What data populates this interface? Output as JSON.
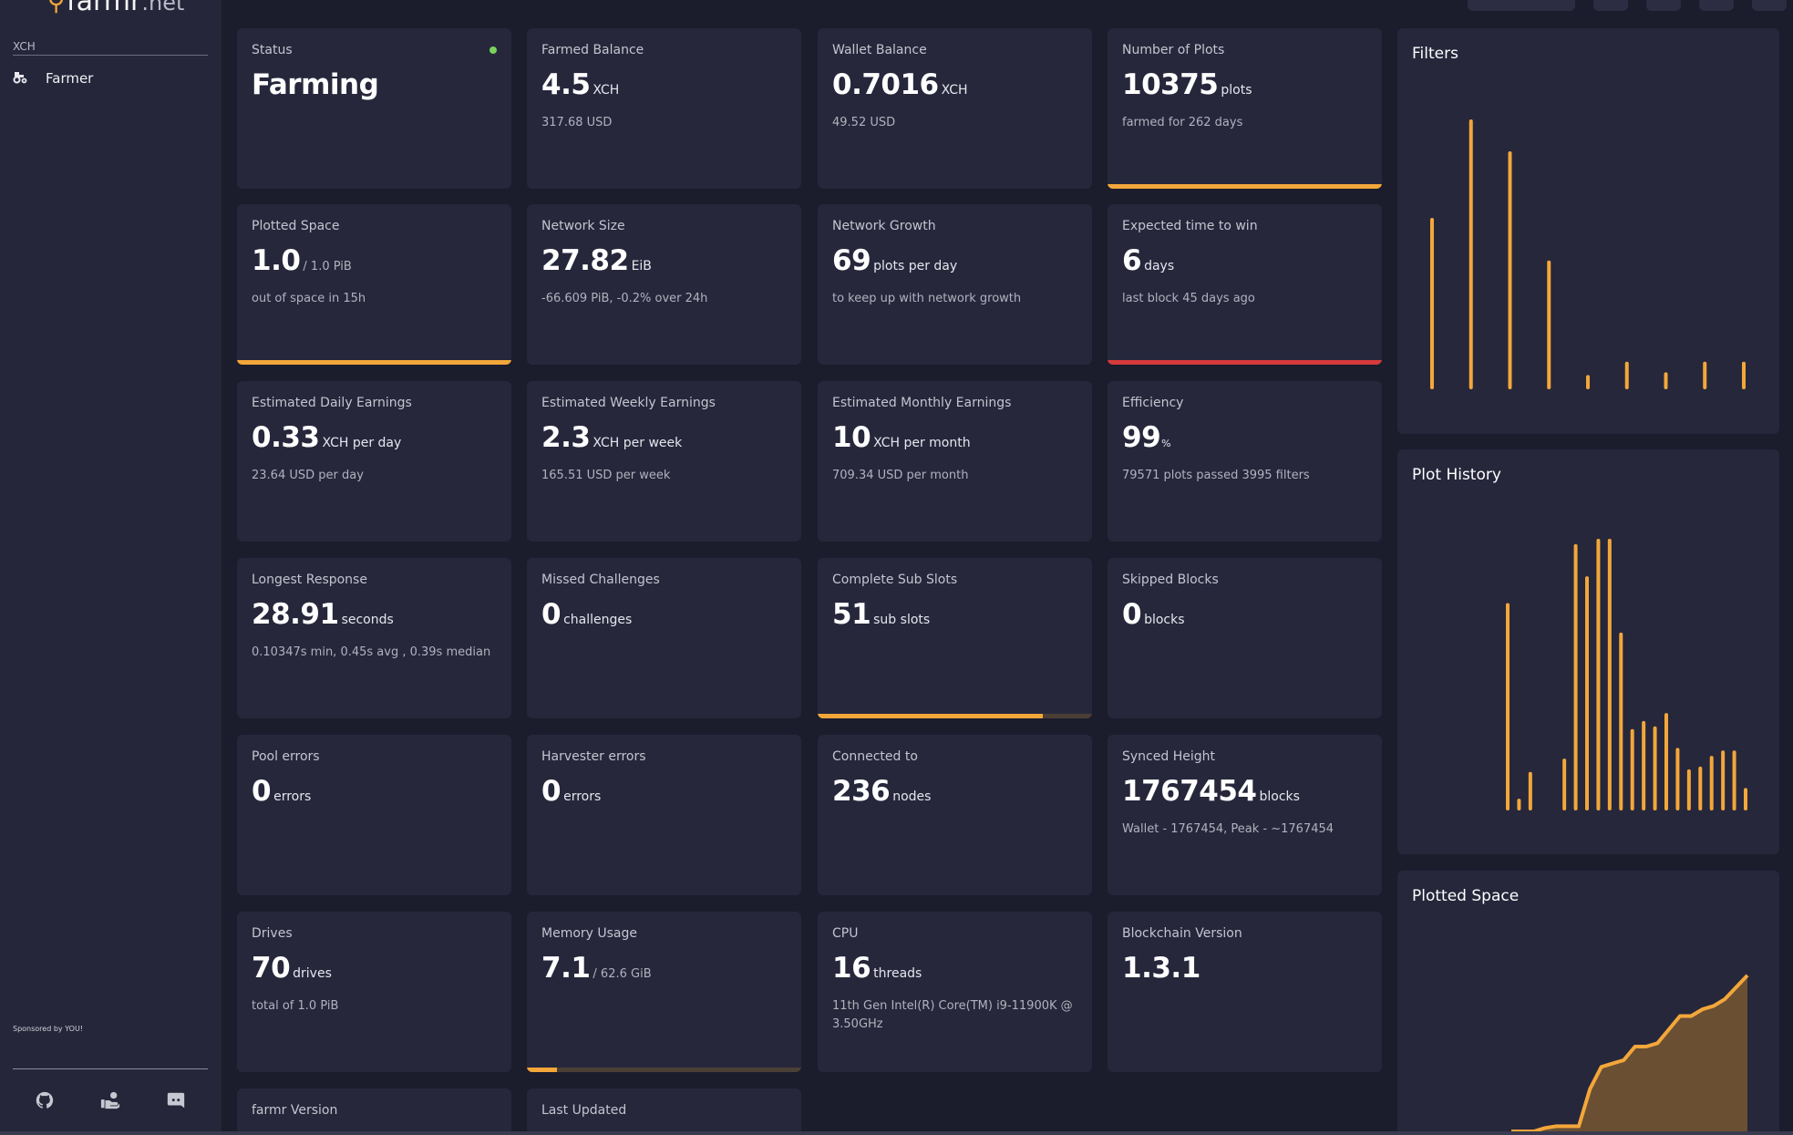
{
  "app": {
    "logo_main": "farmr",
    "logo_suffix": ".net",
    "pin_icon": "map-pin-icon"
  },
  "sidebar": {
    "section": "XCH",
    "items": [
      {
        "label": "Farmer",
        "icon": "tractor-icon"
      }
    ],
    "sponsor": "Sponsored by YOU!",
    "footer_icons": [
      "github-icon",
      "donate-icon",
      "discord-icon"
    ]
  },
  "topbar": {
    "icons": [
      "search-field",
      "user-icon",
      "settings-icon",
      "help-icon",
      "power-icon"
    ]
  },
  "colors": {
    "accent": "#f3a73a",
    "danger": "#d63b3b",
    "ok": "#7ad35c",
    "card": "#26273b",
    "background": "#1b1c2c"
  },
  "cards": {
    "status": {
      "label": "Status",
      "value": "Farming"
    },
    "farmed_balance": {
      "label": "Farmed Balance",
      "value": "4.5",
      "unit": "XCH",
      "sub": "317.68 USD"
    },
    "wallet_balance": {
      "label": "Wallet Balance",
      "value": "0.7016",
      "unit": "XCH",
      "sub": "49.52 USD"
    },
    "plots": {
      "label": "Number of Plots",
      "value": "10375",
      "unit": "plots",
      "sub": "farmed for 262 days",
      "progress": 1.0
    },
    "plotted_space": {
      "label": "Plotted Space",
      "value": "1.0",
      "unit": "/ 1.0 PiB",
      "sub": "out of space in 15h",
      "progress": 1.0
    },
    "network_size": {
      "label": "Network Size",
      "value": "27.82",
      "unit": "EiB",
      "sub": "-66.609 PiB, -0.2% over 24h"
    },
    "network_growth": {
      "label": "Network Growth",
      "value": "69",
      "unit": "plots per day",
      "sub": "to keep up with network growth"
    },
    "time_to_win": {
      "label": "Expected time to win",
      "value": "6",
      "unit": "days",
      "sub": "last block 45 days ago",
      "progress": 1.0
    },
    "daily": {
      "label": "Estimated Daily Earnings",
      "value": "0.33",
      "unit": "XCH per day",
      "sub": "23.64 USD per day"
    },
    "weekly": {
      "label": "Estimated Weekly Earnings",
      "value": "2.3",
      "unit": "XCH per week",
      "sub": "165.51 USD per week"
    },
    "monthly": {
      "label": "Estimated Monthly Earnings",
      "value": "10",
      "unit": "XCH per month",
      "sub": "709.34 USD per month"
    },
    "efficiency": {
      "label": "Efficiency",
      "value": "99",
      "unit": "%",
      "sub": "79571 plots passed 3995 filters"
    },
    "longest_response": {
      "label": "Longest Response",
      "value": "28.91",
      "unit": "seconds",
      "sub": "0.10347s min, 0.45s avg , 0.39s median"
    },
    "missed": {
      "label": "Missed Challenges",
      "value": "0",
      "unit": "challenges"
    },
    "sub_slots": {
      "label": "Complete Sub Slots",
      "value": "51",
      "unit": "sub slots",
      "progress": 0.82
    },
    "skipped": {
      "label": "Skipped Blocks",
      "value": "0",
      "unit": "blocks"
    },
    "pool_errors": {
      "label": "Pool errors",
      "value": "0",
      "unit": "errors"
    },
    "harvester_errors": {
      "label": "Harvester errors",
      "value": "0",
      "unit": "errors"
    },
    "connected": {
      "label": "Connected to",
      "value": "236",
      "unit": "nodes"
    },
    "synced_height": {
      "label": "Synced Height",
      "value": "1767454",
      "unit": "blocks",
      "sub": "Wallet - 1767454,  Peak - ~1767454"
    },
    "drives": {
      "label": "Drives",
      "value": "70",
      "unit": "drives",
      "sub": "total of 1.0 PiB"
    },
    "memory": {
      "label": "Memory Usage",
      "value": "7.1",
      "unit": "/ 62.6 GiB",
      "progress": 0.11
    },
    "cpu": {
      "label": "CPU",
      "value": "16",
      "unit": "threads",
      "sub": "11th Gen Intel(R) Core(TM) i9-11900K @ 3.50GHz"
    },
    "blockchain_version": {
      "label": "Blockchain Version",
      "value": "1.3.1"
    },
    "farmr_version": {
      "label": "farmr Version"
    },
    "last_updated": {
      "label": "Last Updated"
    }
  },
  "chart_data": [
    {
      "type": "bar",
      "title": "Filters",
      "values": [
        63,
        100,
        88,
        47,
        4,
        9,
        5,
        9,
        9
      ]
    },
    {
      "type": "bar",
      "title": "Plot History",
      "values": [
        76,
        3,
        13,
        0,
        0,
        18,
        98,
        86,
        100,
        100,
        65,
        29,
        32,
        30,
        35,
        22,
        14,
        15,
        19,
        21,
        21,
        7
      ]
    },
    {
      "type": "area",
      "title": "Plotted Space",
      "values": [
        0,
        0,
        0,
        0.02,
        0.03,
        0.03,
        0.03,
        0.25,
        0.38,
        0.4,
        0.42,
        0.5,
        0.5,
        0.52,
        0.6,
        0.68,
        0.68,
        0.72,
        0.74,
        0.78,
        0.85,
        0.92
      ]
    }
  ]
}
